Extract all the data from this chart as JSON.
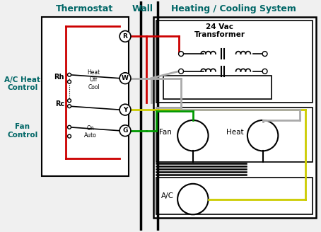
{
  "bg_color": "#f0f0f0",
  "wire_red": "#cc0000",
  "wire_gray": "#aaaaaa",
  "wire_yellow": "#cccc00",
  "wire_green": "#009900",
  "text_teal": "#006666",
  "text_black": "#000000",
  "title_thermostat": "Thermostat",
  "title_wall": "Wall",
  "title_hcs": "Heating / Cooling System",
  "title_transformer": "24 Vac\nTransformer",
  "label_ac_heat": "A/C Heat\nControl",
  "label_fan_ctrl": "Fan\nControl",
  "label_rh": "Rh",
  "label_rc": "Rc",
  "label_R": "R",
  "label_W": "W",
  "label_Y": "Y",
  "label_G": "G",
  "label_heat_off_cool": "Heat\nOff\nCool",
  "label_on_auto": "On\nAuto",
  "label_fan": "Fan",
  "label_heat": "Heat",
  "label_ac": "A/C"
}
